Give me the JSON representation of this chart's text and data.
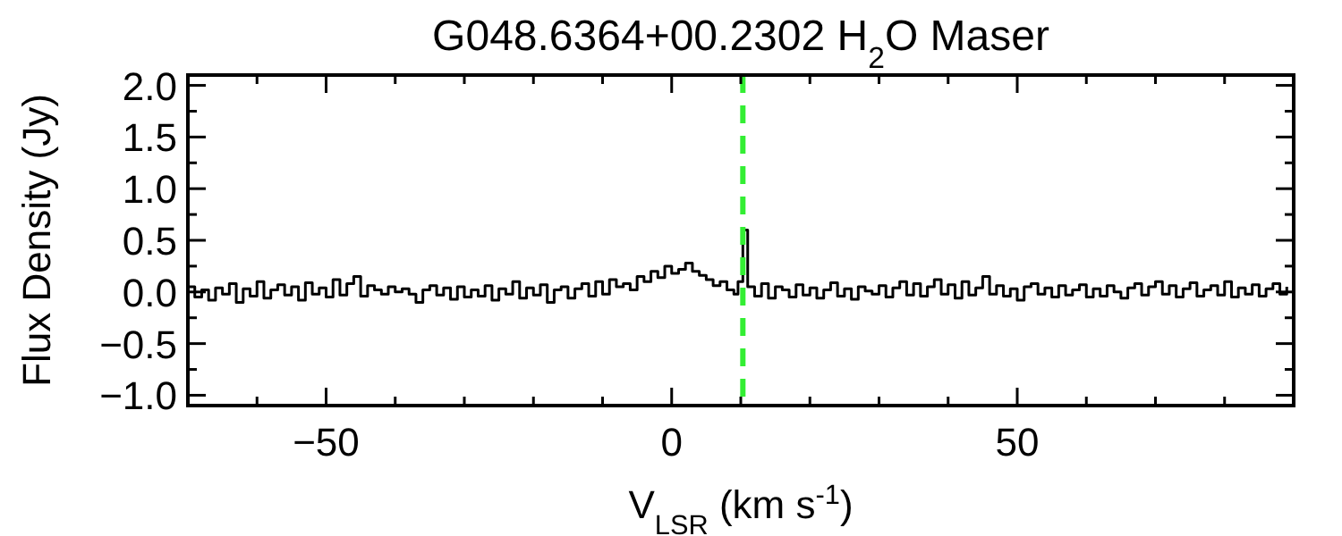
{
  "chart_data": {
    "type": "step",
    "title": "G048.6364+00.2302 H$_{2}$O Maser",
    "xlabel": "V$_{LSR}$ (km s$^{-1}$)",
    "ylabel": "Flux Density (Jy)",
    "xlim": [
      -70,
      90
    ],
    "ylim": [
      -1.1,
      2.1
    ],
    "xticks": [
      {
        "value": -70,
        "label": null
      },
      {
        "value": -60,
        "label": null
      },
      {
        "value": -50,
        "label": "−50"
      },
      {
        "value": -40,
        "label": null
      },
      {
        "value": -30,
        "label": null
      },
      {
        "value": -20,
        "label": null
      },
      {
        "value": -10,
        "label": null
      },
      0,
      {
        "value": 10,
        "label": null
      },
      {
        "value": 20,
        "label": null
      },
      {
        "value": 30,
        "label": null
      },
      {
        "value": 40,
        "label": null
      },
      50,
      {
        "value": 60,
        "label": null
      },
      {
        "value": 70,
        "label": null
      },
      {
        "value": 80,
        "label": null
      },
      {
        "value": 90,
        "label": null
      }
    ],
    "yticks": [
      {
        "value": -1,
        "label": "−1.0"
      },
      {
        "value": -0.75,
        "label": null
      },
      {
        "value": -0.5,
        "label": "−0.5"
      },
      {
        "value": -0.25,
        "label": null
      },
      {
        "value": 0,
        "label": "0.0"
      },
      {
        "value": 0.25,
        "label": null
      },
      {
        "value": 0.5,
        "label": "0.5"
      },
      {
        "value": 0.75,
        "label": null
      },
      {
        "value": 1,
        "label": "1.0"
      },
      {
        "value": 1.25,
        "label": null
      },
      {
        "value": 1.5,
        "label": "1.5"
      },
      {
        "value": 1.75,
        "label": null
      },
      {
        "value": 2,
        "label": "2.0"
      }
    ],
    "x": [
      -70,
      -69,
      -68,
      -67,
      -66,
      -65,
      -64,
      -63,
      -62,
      -61,
      -60,
      -59,
      -58,
      -57,
      -56,
      -55,
      -54,
      -53,
      -52,
      -51,
      -50,
      -49,
      -48,
      -47,
      -46,
      -45,
      -44,
      -43,
      -42,
      -41,
      -40,
      -39,
      -38,
      -37,
      -36,
      -35,
      -34,
      -33,
      -32,
      -31,
      -30,
      -29,
      -28,
      -27,
      -26,
      -25,
      -24,
      -23,
      -22,
      -21,
      -20,
      -19,
      -18,
      -17,
      -16,
      -15,
      -14,
      -13,
      -12,
      -11,
      -10,
      -9,
      -8,
      -7,
      -6,
      -5,
      -4,
      -3,
      -2,
      -1,
      0,
      1,
      2,
      3,
      4,
      5,
      6,
      7,
      8,
      9,
      9.6,
      10.3,
      11,
      12,
      13,
      14,
      15,
      16,
      17,
      18,
      19,
      20,
      21,
      22,
      23,
      24,
      25,
      26,
      27,
      28,
      29,
      30,
      31,
      32,
      33,
      34,
      35,
      36,
      37,
      38,
      39,
      40,
      41,
      42,
      43,
      44,
      45,
      46,
      47,
      48,
      49,
      50,
      51,
      52,
      53,
      54,
      55,
      56,
      57,
      58,
      59,
      60,
      61,
      62,
      63,
      64,
      65,
      66,
      67,
      68,
      69,
      70,
      71,
      72,
      73,
      74,
      75,
      76,
      77,
      78,
      79,
      80,
      81,
      82,
      83,
      84,
      85,
      86,
      87,
      88,
      89
    ],
    "series": [
      {
        "color": "#000000",
        "values": [
          0.05,
          -0.05,
          0.02,
          -0.08,
          0.04,
          -0.02,
          0.08,
          -0.1,
          0.03,
          -0.04,
          0.1,
          -0.06,
          0.02,
          0.07,
          -0.03,
          0.05,
          -0.08,
          0.09,
          -0.02,
          0.04,
          -0.05,
          0.12,
          -0.03,
          0.08,
          0.15,
          -0.04,
          0.06,
          0.02,
          -0.02,
          0.05,
          0.0,
          0.03,
          -0.02,
          -0.1,
          0.02,
          0.06,
          -0.03,
          0.04,
          -0.07,
          0.05,
          -0.05,
          0.02,
          -0.04,
          0.06,
          -0.08,
          0.03,
          -0.02,
          0.1,
          -0.06,
          0.04,
          -0.03,
          0.07,
          -0.1,
          0.02,
          0.05,
          -0.06,
          0.03,
          0.08,
          -0.04,
          0.1,
          -0.02,
          0.12,
          0.05,
          0.08,
          0.02,
          0.15,
          0.1,
          0.2,
          0.14,
          0.25,
          0.18,
          0.22,
          0.28,
          0.2,
          0.16,
          0.12,
          0.06,
          0.1,
          0.02,
          -0.02,
          0.1,
          0.6,
          0.05,
          -0.04,
          0.08,
          -0.06,
          0.05,
          0.02,
          -0.05,
          0.07,
          -0.03,
          0.04,
          -0.06,
          0.02,
          0.09,
          -0.04,
          0.03,
          -0.07,
          0.05,
          0.01,
          -0.02,
          0.06,
          -0.05,
          0.04,
          0.1,
          -0.03,
          0.08,
          -0.04,
          0.05,
          0.12,
          -0.02,
          0.07,
          -0.06,
          0.1,
          -0.03,
          0.04,
          0.15,
          -0.02,
          0.06,
          -0.04,
          0.03,
          -0.08,
          0.05,
          0.08,
          -0.02,
          0.04,
          -0.05,
          0.06,
          -0.03,
          0.02,
          0.07,
          -0.05,
          0.03,
          -0.04,
          0.06,
          0.0,
          -0.06,
          0.04,
          0.08,
          -0.03,
          0.05,
          0.1,
          -0.02,
          0.06,
          -0.05,
          0.03,
          0.09,
          -0.04,
          0.02,
          0.06,
          -0.03,
          0.1,
          -0.05,
          0.04,
          -0.02,
          0.07,
          -0.04,
          0.03,
          0.08,
          -0.02,
          0.05
        ]
      }
    ],
    "ref_lines": [
      {
        "axis": "x",
        "value": 10.3,
        "color": "#33ee33",
        "line_style": "dashed"
      }
    ]
  }
}
